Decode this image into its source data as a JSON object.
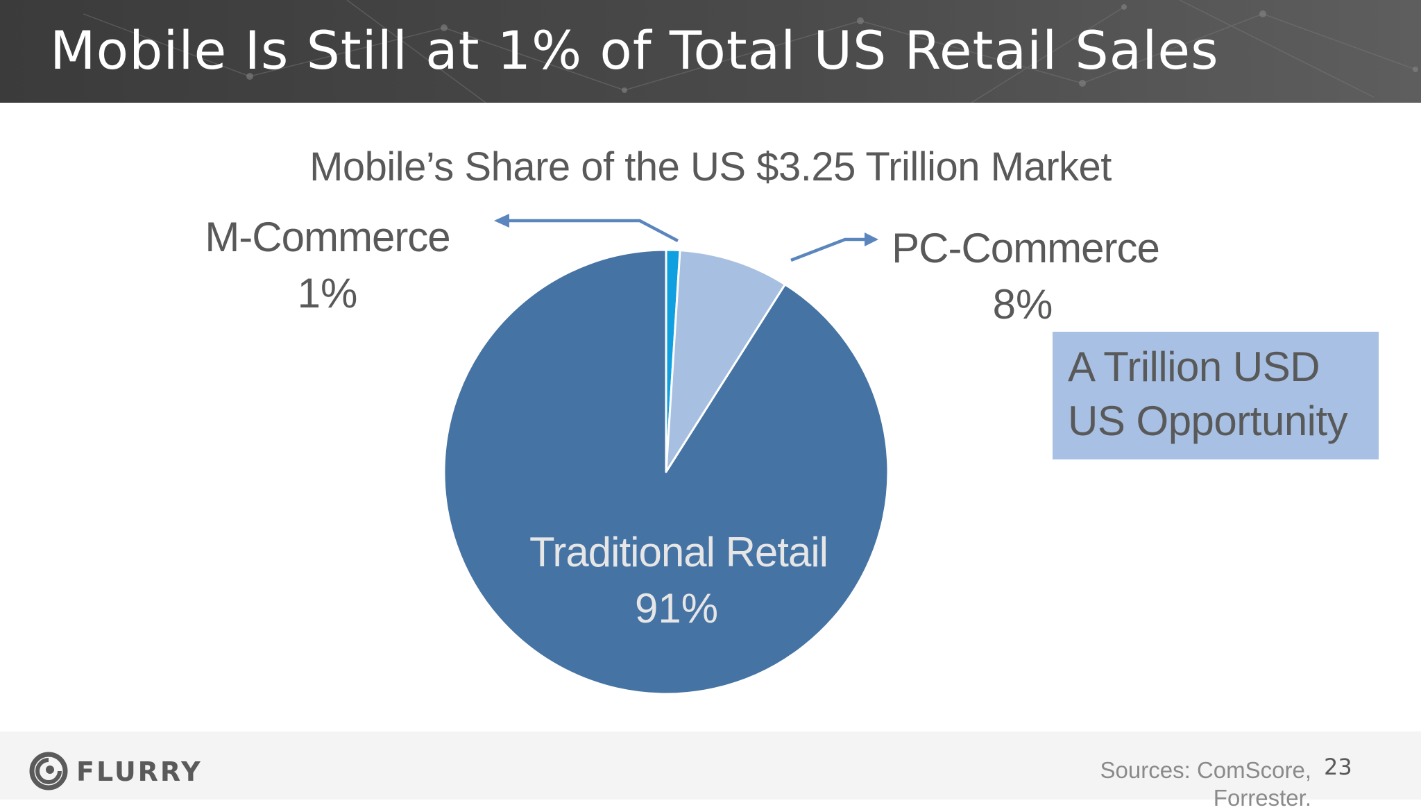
{
  "header": {
    "title": "Mobile Is Still at 1% of Total US Retail Sales"
  },
  "chart_data": {
    "type": "pie",
    "title": "Mobile’s Share of the US $3.25 Trillion Market",
    "slices": [
      {
        "label": "M-Commerce",
        "value": 1,
        "value_label": "1%",
        "color": "#10a0e0"
      },
      {
        "label": "PC-Commerce",
        "value": 8,
        "value_label": "8%",
        "color": "#a7bfe0"
      },
      {
        "label": "Traditional Retail",
        "value": 91,
        "value_label": "91%",
        "color": "#4573a3"
      }
    ],
    "start_angle_deg": 0,
    "direction": "clockwise"
  },
  "callout": {
    "line1": "A Trillion USD",
    "line2": "US Opportunity"
  },
  "footer": {
    "brand": "FLURRY",
    "sources": "Sources: ComScore, Forrester.",
    "page_number": "23"
  },
  "colors": {
    "header_bg": "#454545",
    "label_text": "#595959",
    "callout_bg": "#a7c0e3",
    "arrow": "#5a86bd",
    "inner_label": "#e6e6e6"
  }
}
